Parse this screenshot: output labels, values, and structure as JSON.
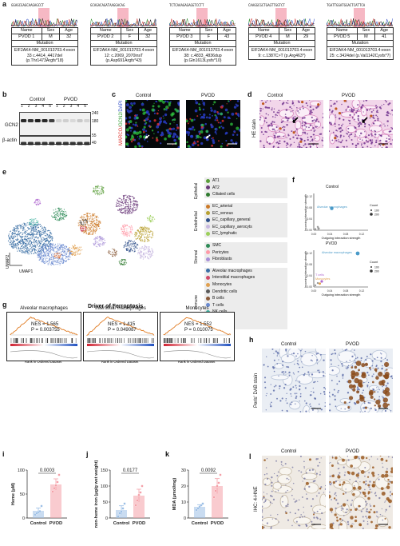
{
  "panel_labels": {
    "a": "a",
    "b": "b",
    "c": "c",
    "d": "d",
    "e": "e",
    "f": "f",
    "g": "g",
    "h": "h",
    "i": "i",
    "j": "j",
    "k": "k",
    "l": "l"
  },
  "table_headers": {
    "name": "Name",
    "sex": "Sex",
    "age": "Age",
    "mutation": "Mutation"
  },
  "patients": [
    {
      "seq": "GGAGCGAGCAAGAGCCT",
      "name": "PVOD 1",
      "sex": "M",
      "age": "32",
      "mutation": "EIF2AK4-NM_001013703.4:exon 33 c.4414_4417del (p.Thr1473Argfs*18)"
    },
    {
      "seq": "GCAGACAGATAAGGACAG",
      "name": "PVOD 2",
      "sex": "F",
      "age": "32",
      "mutation": "EIF2AK4-NM_001013703.4:exon 12: c.2069_2070insT (p.Asp691Argfs*43)"
    },
    {
      "seq": "TCTCAAAGAGAGGTCCTT",
      "name": "PVOD 3",
      "sex": "F",
      "age": "43",
      "mutation": "EIF2AK4-NM_001013703.4:exon 38: c.4833_4836dup (p.Gln1613Lysfs*10)"
    },
    {
      "seq": "CAAGGCGCTGAGTTGGTCT",
      "name": "PVOD 4",
      "sex": "M",
      "age": "29",
      "mutation": "EIF2AK4-NM_001013703.4:exon 9: c.1387C>T (p.Arg463*)"
    },
    {
      "seq": "TGATTGGATGGACTCATTCA",
      "name": "PVOD 5",
      "sex": "M",
      "age": "41",
      "mutation": "EIF2AK4-NM_001013703.4:exon 25: c.3424del (p.Val1142Cysfs*7)"
    }
  ],
  "western": {
    "group_control": "Control",
    "group_pvod": "PVOD",
    "lanes": [
      "1",
      "2",
      "3",
      "4",
      "5",
      "1",
      "2",
      "3",
      "4",
      "5"
    ],
    "proteins": [
      "GCN2",
      "β-actin"
    ],
    "markers": [
      "240",
      "180",
      "55",
      "40"
    ]
  },
  "panel_c": {
    "control": "Control",
    "pvod": "PVOD",
    "ylabel_parts": [
      "MARCO/",
      "GCN2/",
      "DAPI"
    ]
  },
  "panel_d": {
    "control": "Control",
    "pvod": "PVOD",
    "ylabel": "HE stain"
  },
  "panel_e": {
    "xlabel": "UMAP1",
    "ylabel": "UMAP2",
    "cluster_ids": [
      "1",
      "2",
      "3",
      "4",
      "5",
      "6",
      "7",
      "8",
      "9",
      "10",
      "11",
      "12",
      "13",
      "14",
      "15",
      "16",
      "17",
      "18",
      "19",
      "20"
    ],
    "groups": [
      {
        "label": "Epithelial",
        "items": [
          {
            "n": "1",
            "name": "AT1",
            "color": "#5a9e3a"
          },
          {
            "n": "2",
            "name": "AT2",
            "color": "#6b3a7a"
          },
          {
            "n": "3",
            "name": "Ciliated cells",
            "color": "#2f7a2f"
          }
        ]
      },
      {
        "label": "Endothelial",
        "items": [
          {
            "n": "4",
            "name": "EC_arterial",
            "color": "#cc7a28"
          },
          {
            "n": "5",
            "name": "EC_venous",
            "color": "#b8a030"
          },
          {
            "n": "6",
            "name": "EC_capillary_general",
            "color": "#2f4f8a"
          },
          {
            "n": "7",
            "name": "EC_capillary_aerocyts",
            "color": "#c8b8e0"
          },
          {
            "n": "8",
            "name": "EC_lymphatic",
            "color": "#9ccf5a"
          }
        ]
      },
      {
        "label": "Stromal",
        "items": [
          {
            "n": "9",
            "name": "SMC",
            "color": "#2e8b57"
          },
          {
            "n": "10",
            "name": "Pericytes",
            "color": "#ff9aa8"
          },
          {
            "n": "11",
            "name": "Fibroblasts",
            "color": "#a890d8"
          }
        ]
      },
      {
        "label": "Immune",
        "items": [
          {
            "n": "12",
            "name": "Alveolar macrophages",
            "color": "#3a6ea5"
          },
          {
            "n": "13",
            "name": "Interstitial macrophages",
            "color": "#d04a6a"
          },
          {
            "n": "14",
            "name": "Monocytes",
            "color": "#e0a050"
          },
          {
            "n": "15",
            "name": "Dendritic cells",
            "color": "#5a5a5a"
          },
          {
            "n": "16",
            "name": "B cells",
            "color": "#8a5a3a"
          },
          {
            "n": "17",
            "name": "T cells",
            "color": "#6a8ad0"
          },
          {
            "n": "18",
            "name": "NK cells",
            "color": "#40b0a0"
          },
          {
            "n": "19",
            "name": "Mast cells",
            "color": "#b06ad0"
          },
          {
            "n": "20",
            "name": "Plasma cells",
            "color": "#e06a2a"
          }
        ]
      }
    ]
  },
  "panel_f": {
    "xlabel": "Outgoing interaction strength",
    "ylabel": "Incoming interaction strength",
    "legend_title": "Count",
    "legend_values": [
      "100",
      "200"
    ],
    "legend_values_pvod": [
      "100",
      "200"
    ],
    "plots": [
      {
        "title": "Control",
        "ticks": [
          "0.00",
          "0.04",
          "0.08",
          "0.12"
        ],
        "yticks": [
          "0.00",
          "0.04",
          "0.08",
          "0.12"
        ],
        "labels": [
          "Alveolar macrophages"
        ]
      },
      {
        "title": "PVOD",
        "ticks": [
          "0.00",
          "0.04",
          "0.08",
          "0.12"
        ],
        "yticks": [
          "0.00",
          "0.04",
          "0.08",
          "0.12"
        ],
        "labels": [
          "Alveolar macrophages",
          "T cells",
          "Monocytes"
        ]
      }
    ]
  },
  "panel_g": {
    "title": "Driver of Ferroptosis",
    "xlabel": "Rank in Ordered Dataset",
    "ylabel": "Enrichment score",
    "plots": [
      {
        "title": "Alveolar macrophages",
        "nes": "NES = 1.565",
        "p": "P = 0.003755"
      },
      {
        "title": "Interstitial macrophages",
        "nes": "NES = 1.415",
        "p": "P = 0.049087"
      },
      {
        "title": "Monocytes",
        "nes": "NES = 1.552",
        "p": "P = 0.010075"
      }
    ]
  },
  "panel_h": {
    "control": "Control",
    "pvod": "PVOD",
    "ylabel": "Perls' DAB stain"
  },
  "panel_l": {
    "control": "Control",
    "pvod": "PVOD",
    "ylabel": "IHC: 4-HNE"
  },
  "chart_data": [
    {
      "type": "bar",
      "categories": [
        "Control",
        "PVOD"
      ],
      "values": [
        15,
        70
      ],
      "pvalue": "0.0003",
      "ylabel": "Heme (μM)",
      "ylim": [
        0,
        100
      ],
      "yticks": [
        "0",
        "50",
        "100"
      ],
      "points": [
        [
          7,
          10,
          12,
          14,
          25
        ],
        [
          55,
          62,
          68,
          75,
          90
        ]
      ],
      "colors": [
        "#9cbfe6",
        "#f4a0a8"
      ]
    },
    {
      "type": "bar",
      "categories": [
        "Control",
        "PVOD"
      ],
      "values": [
        25,
        70
      ],
      "pvalue": "0.0177",
      "ylabel": "non-heme iron (μg/g wet weight)",
      "ylim": [
        0,
        150
      ],
      "yticks": [
        "0",
        "50",
        "100",
        "150"
      ],
      "points": [
        [
          5,
          15,
          20,
          30,
          45
        ],
        [
          40,
          55,
          72,
          80,
          100
        ]
      ],
      "colors": [
        "#9cbfe6",
        "#f4a0a8"
      ]
    },
    {
      "type": "bar",
      "categories": [
        "Control",
        "PVOD"
      ],
      "values": [
        7,
        20
      ],
      "pvalue": "0.0092",
      "ylabel": "MDA (μmol/mg)",
      "ylim": [
        0,
        30
      ],
      "yticks": [
        "0",
        "10",
        "20",
        "30"
      ],
      "points": [
        [
          5,
          6,
          7,
          8,
          9
        ],
        [
          13,
          17,
          20,
          22,
          27
        ]
      ],
      "colors": [
        "#9cbfe6",
        "#f4a0a8"
      ]
    }
  ]
}
